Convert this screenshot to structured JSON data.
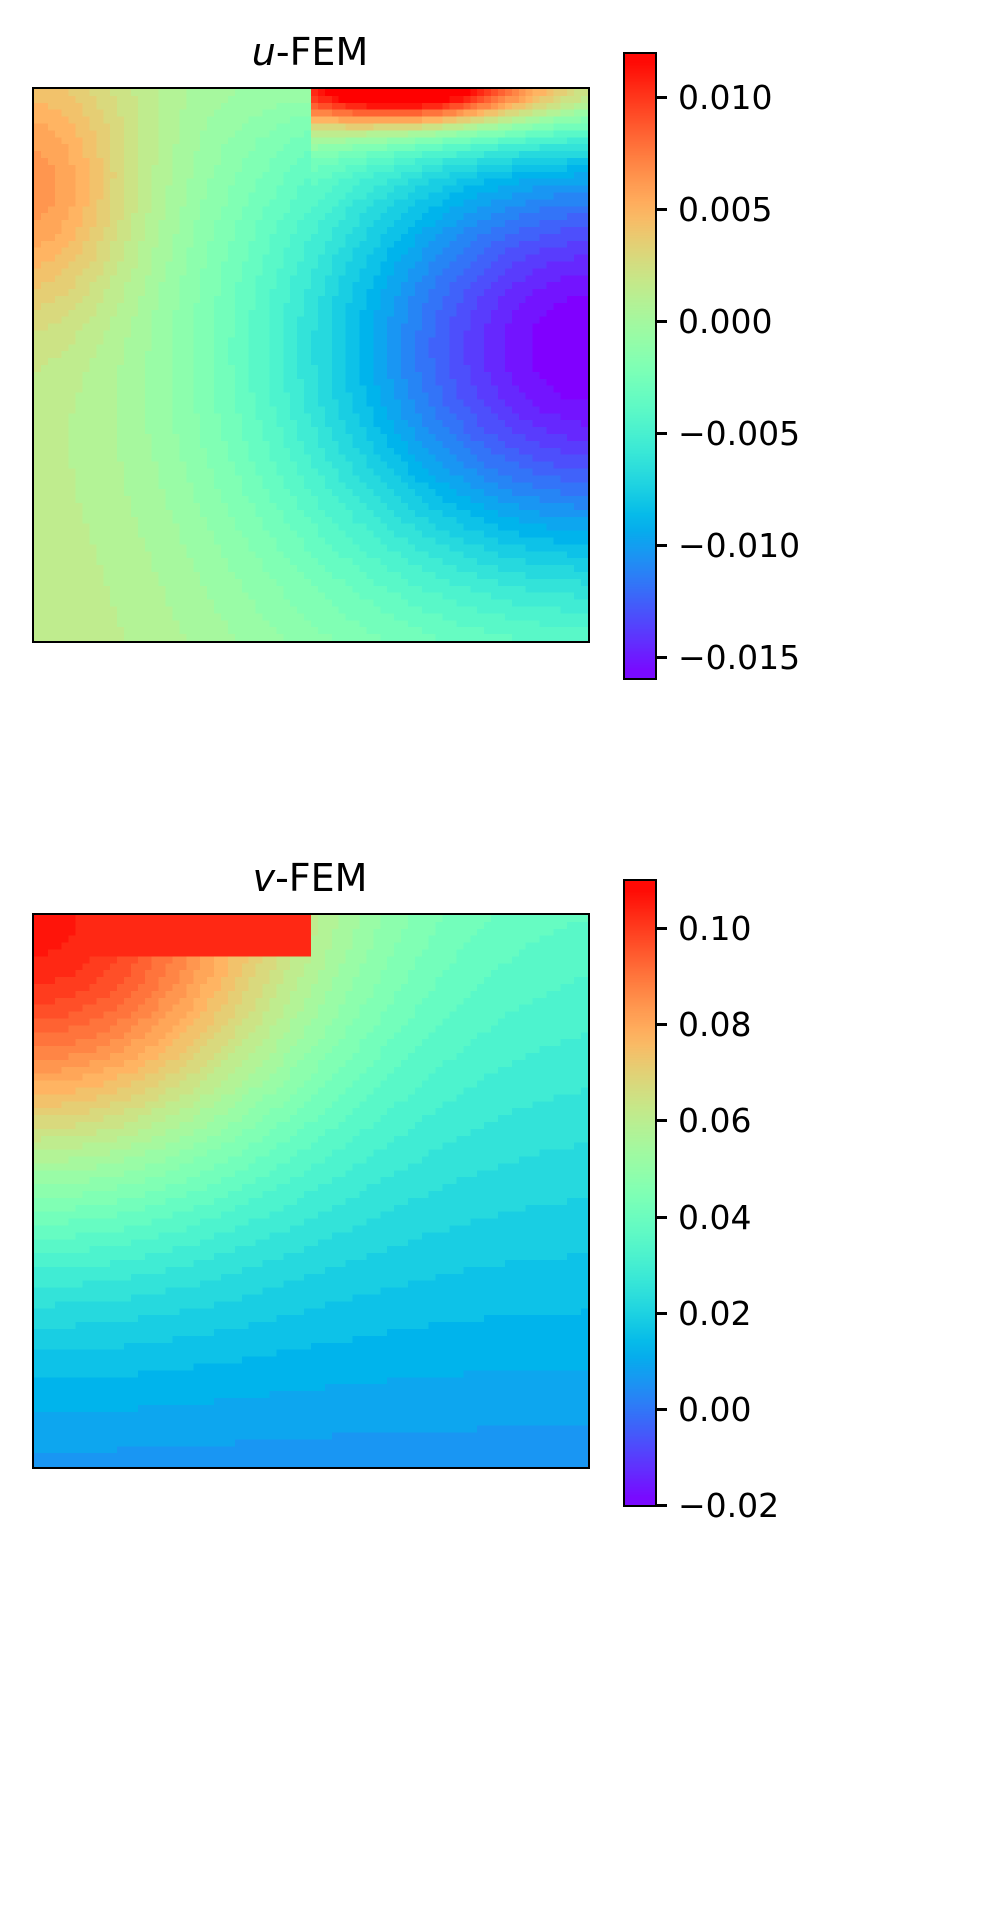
{
  "figure": {
    "panels": [
      {
        "title_var": "u",
        "title_suffix": "-FEM",
        "colorbar": {
          "ticks": [
            "0.010",
            "0.005",
            "0.000",
            "−0.005",
            "−0.010",
            "−0.015"
          ],
          "extend_top_color": "#000000",
          "extend_bottom_color": "#f2f2f2",
          "colormap": "rainbow"
        }
      },
      {
        "title_var": "v",
        "title_suffix": "-FEM",
        "colorbar": {
          "ticks": [
            "0.10",
            "0.08",
            "0.06",
            "0.04",
            "0.02",
            "0.00",
            "−0.02"
          ],
          "extend_top_color": "#000000",
          "extend_bottom_color": "#f2f2f2",
          "colormap": "rainbow"
        }
      }
    ]
  },
  "chart_data": [
    {
      "type": "heatmap",
      "title": "u-FEM",
      "xlabel": "",
      "ylabel": "",
      "axes_ticks": "none",
      "colormap": "rainbow",
      "colorbar_range": [
        -0.0165,
        0.0118
      ],
      "colorbar_ticks": [
        0.01,
        0.005,
        0.0,
        -0.005,
        -0.01,
        -0.015
      ],
      "colorbar_extend": "both",
      "description": "Square domain. Maximum (~0.011, red) along top edge right of center (x≈0.5-0.75); secondary positive region (~0.004, orange) at upper-left edge; minimum (~-0.015, violet) at right edge, ~45% down from top; values near 0 (light green) along left and bottom edges.",
      "features": [
        {
          "location": "top edge, x 0.5-0.8",
          "value": 0.011
        },
        {
          "location": "left edge, y 0.1-0.3 from top",
          "value": 0.004
        },
        {
          "location": "right edge, y ~0.5",
          "value": -0.015
        },
        {
          "location": "center",
          "value": -0.008
        },
        {
          "location": "bottom edge",
          "value": -0.001
        }
      ]
    },
    {
      "type": "heatmap",
      "title": "v-FEM",
      "xlabel": "",
      "ylabel": "",
      "axes_ticks": "none",
      "colormap": "rainbow",
      "colorbar_range": [
        -0.02,
        0.108
      ],
      "colorbar_ticks": [
        0.1,
        0.08,
        0.06,
        0.04,
        0.02,
        0.0,
        -0.02
      ],
      "colorbar_extend": "both",
      "description": "Square domain. Maximum (~0.10, red) along top-left edge (x 0-0.5); decreasing radially from the top-left region; ~0.03 (cyan) at right edge; minimum (~0.005, blue) along bottom edge.",
      "features": [
        {
          "location": "top edge, x 0-0.5",
          "value": 0.1
        },
        {
          "location": "top edge, x ~0.6",
          "value": 0.06
        },
        {
          "location": "top right corner",
          "value": 0.03
        },
        {
          "location": "center",
          "value": 0.035
        },
        {
          "location": "bottom edge",
          "value": 0.005
        }
      ]
    }
  ]
}
